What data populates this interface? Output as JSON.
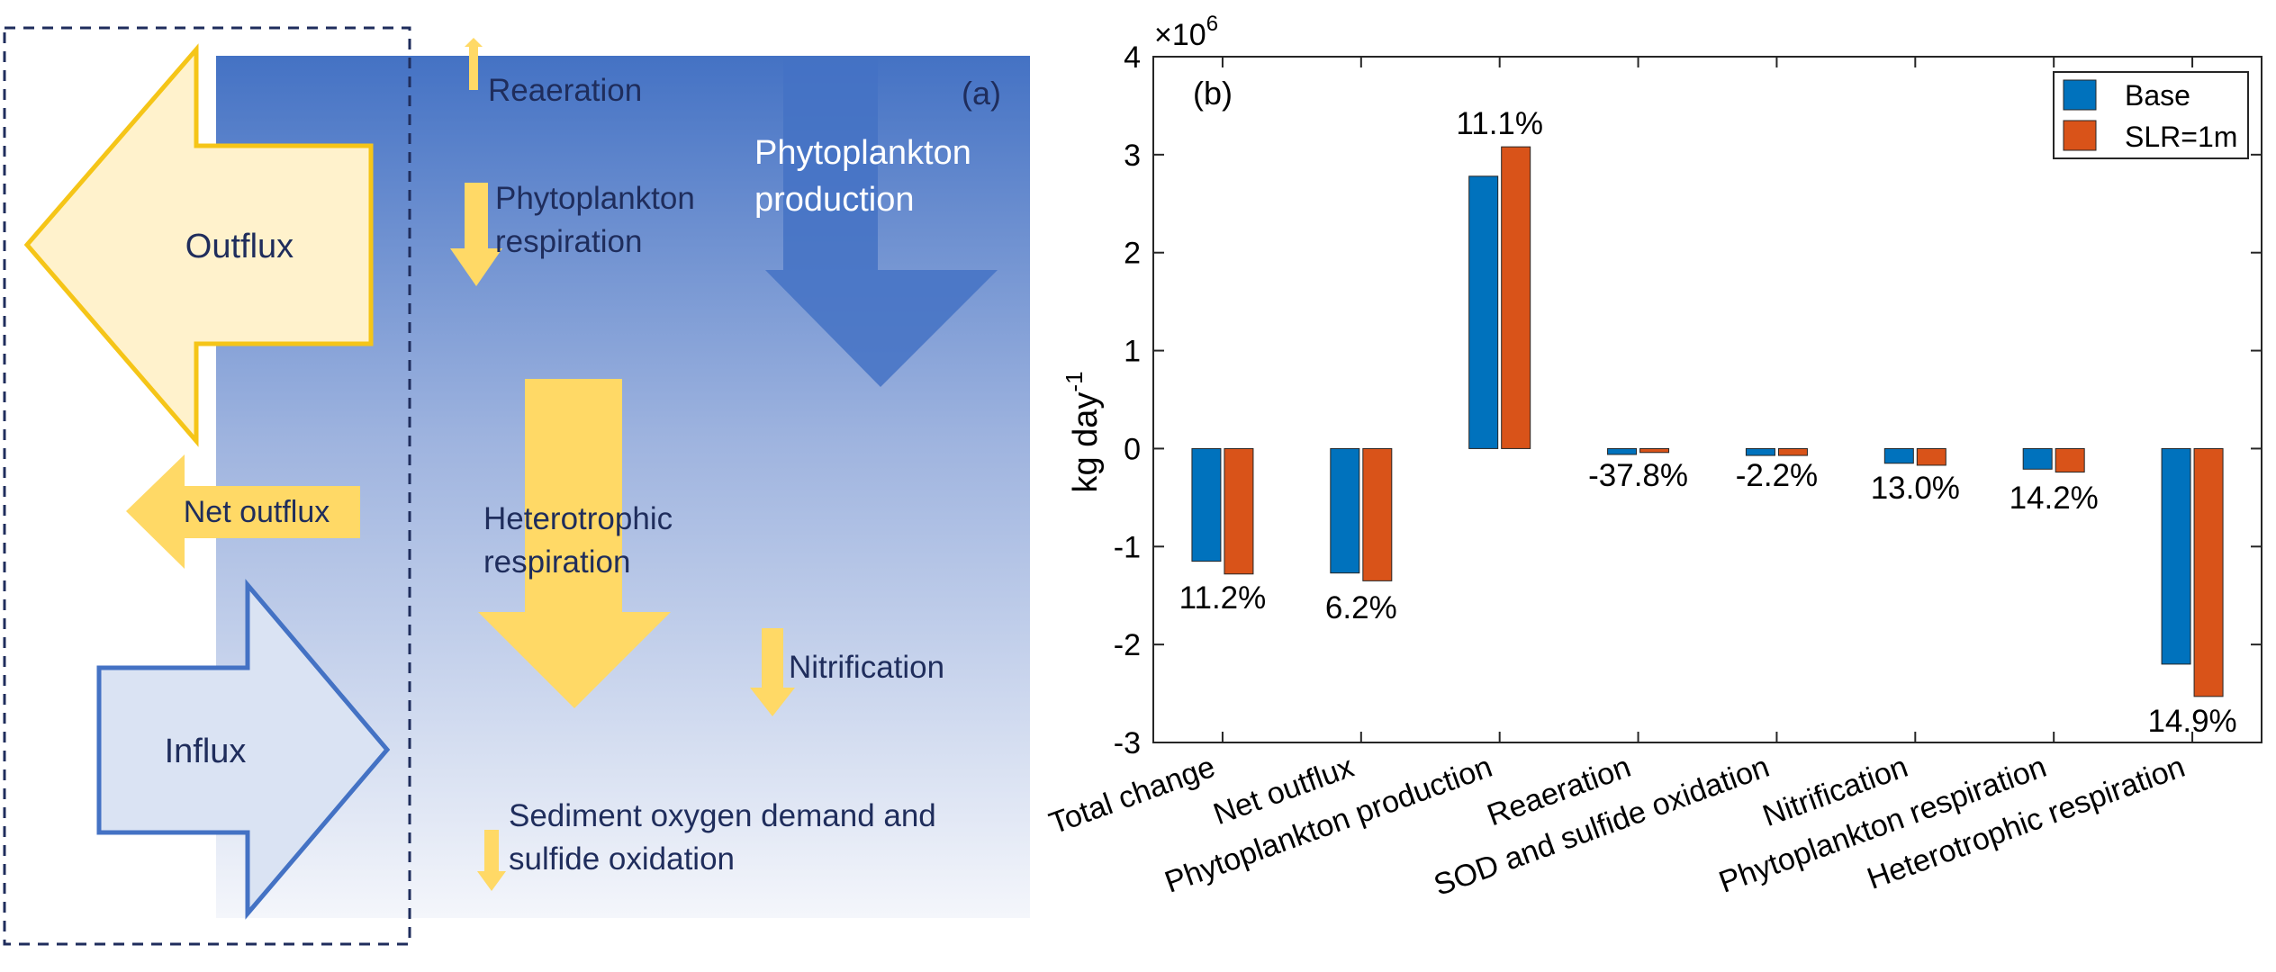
{
  "diagram": {
    "panel_label": "(a)",
    "outflux": "Outflux",
    "net_outflux": "Net outflux",
    "influx": "Influx",
    "reaeration": "Reaeration",
    "phyto_resp_line1": "Phytoplankton",
    "phyto_resp_line2": "respiration",
    "phyto_prod_line1": "Phytoplankton",
    "phyto_prod_line2": "production",
    "hetero_line1": "Heterotrophic",
    "hetero_line2": "respiration",
    "nitrification": "Nitrification",
    "sod_line1": "Sediment oxygen demand and",
    "sod_line2": "sulfide oxidation"
  },
  "chart_data": {
    "type": "bar",
    "panel_label": "(b)",
    "ylabel": "kg day",
    "ylabel_sup": "-1",
    "exponent_base": "×10",
    "exponent_power": "6",
    "ylim": [
      -3,
      4
    ],
    "yticks": [
      -3,
      -2,
      -1,
      0,
      1,
      2,
      3,
      4
    ],
    "ytick_labels": [
      "-3",
      "-2",
      "-1",
      "0",
      "1",
      "2",
      "3",
      "4"
    ],
    "legend_position": "top-right",
    "categories": [
      "Total change",
      "Net outflux",
      "Phytoplankton production",
      "Reaeration",
      "SOD and sulfide oxidation",
      "Nitrification",
      "Phytoplankton respiration",
      "Heterotrophic respiration"
    ],
    "series": [
      {
        "name": "Base",
        "color": "#0072BD",
        "values": [
          -1.15,
          -1.27,
          2.78,
          -0.06,
          -0.07,
          -0.15,
          -0.21,
          -2.2
        ]
      },
      {
        "name": "SLR=1m",
        "color": "#D95319",
        "values": [
          -1.28,
          -1.35,
          3.08,
          -0.04,
          -0.07,
          -0.17,
          -0.24,
          -2.53
        ]
      }
    ],
    "annotations": [
      {
        "text": "11.2%",
        "category": 0,
        "y": -1.52
      },
      {
        "text": "6.2%",
        "category": 1,
        "y": -1.62
      },
      {
        "text": "11.1%",
        "category": 2,
        "y": 3.32
      },
      {
        "text": "-37.8%",
        "category": 3,
        "y": -0.27
      },
      {
        "text": "-2.2%",
        "category": 4,
        "y": -0.27
      },
      {
        "text": "13.0%",
        "category": 5,
        "y": -0.4
      },
      {
        "text": "14.2%",
        "category": 6,
        "y": -0.5
      },
      {
        "text": "14.9%",
        "category": 7,
        "y": -2.78
      }
    ]
  }
}
